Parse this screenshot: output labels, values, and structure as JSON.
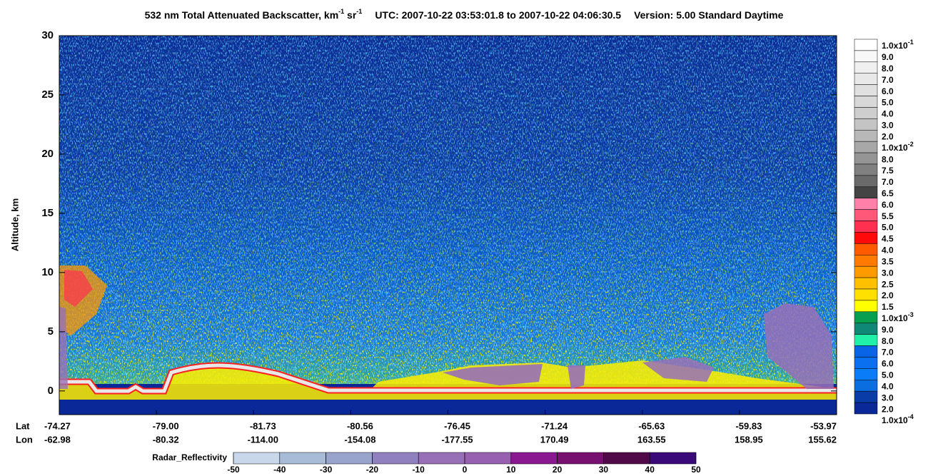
{
  "chart_data": {
    "type": "curtain",
    "title_parts": [
      "532 nm Total Attenuated Backscatter, km",
      "-1",
      " sr",
      "-1",
      "UTC:  2007-10-22 03:53:01.8  to  2007-10-22 04:06:30.5",
      "Version: 5.00  Standard  Daytime"
    ],
    "y_label": "Altitude, km",
    "ylim": [
      -2,
      30
    ],
    "yticks": [
      0,
      5,
      10,
      15,
      20,
      25,
      30
    ],
    "x_rows": [
      {
        "name": "Lat",
        "labels": [
          "-74.27",
          "-79.00",
          "-81.73",
          "-80.56",
          "-76.45",
          "-71.24",
          "-65.63",
          "-59.83",
          "-53.97"
        ]
      },
      {
        "name": "Lon",
        "labels": [
          "-62.98",
          "-80.32",
          "-114.00",
          "-154.08",
          "-177.55",
          "170.49",
          "163.55",
          "158.95",
          "155.62"
        ]
      }
    ],
    "colorbar": {
      "labels": [
        {
          "mantissa": "1.0x10",
          "exponent": "-1"
        },
        "9.0",
        "8.0",
        "7.0",
        "6.0",
        "5.0",
        "4.0",
        "3.0",
        "2.0",
        {
          "mantissa": "1.0x10",
          "exponent": "-2"
        },
        "8.0",
        "7.5",
        "7.0",
        "6.5",
        "6.0",
        "5.5",
        "5.0",
        "4.5",
        "4.0",
        "3.5",
        "3.0",
        "2.5",
        "2.0",
        "1.5",
        {
          "mantissa": "1.0x10",
          "exponent": "-3"
        },
        "9.0",
        "8.0",
        "7.0",
        "6.0",
        "5.0",
        "4.0",
        "3.0",
        "2.0",
        {
          "mantissa": "1.0x10",
          "exponent": "-4"
        }
      ],
      "colors": [
        "#ffffff",
        "#f8f8f8",
        "#f0f0f0",
        "#e8e8e8",
        "#e0e0e0",
        "#d8d8d8",
        "#cecece",
        "#c4c4c4",
        "#b8b8b8",
        "#a8a8a8",
        "#959595",
        "#808080",
        "#6a6a6a",
        "#444444",
        "#ff80a8",
        "#ff5878",
        "#ff3050",
        "#ff0a0a",
        "#ff5a00",
        "#ff7a00",
        "#ff9a00",
        "#ffc000",
        "#ffe000",
        "#ffff00",
        "#08a050",
        "#108878",
        "#20f0a8",
        "#0a64e6",
        "#0a70f0",
        "#0a7cf8",
        "#0a6ee0",
        "#0a3ca8",
        "#0a2898"
      ]
    },
    "radar_bar": {
      "title": "Radar_Reflectivity",
      "ticks": [
        -50,
        -40,
        -30,
        -20,
        -10,
        0,
        10,
        20,
        30,
        40,
        50
      ],
      "colors": [
        "#c8d8ea",
        "#a8bcd8",
        "#98a4cc",
        "#9080c0",
        "#9870b8",
        "#9860b0",
        "#8a1890",
        "#781070",
        "#500a48",
        "#3a0a78"
      ]
    }
  }
}
